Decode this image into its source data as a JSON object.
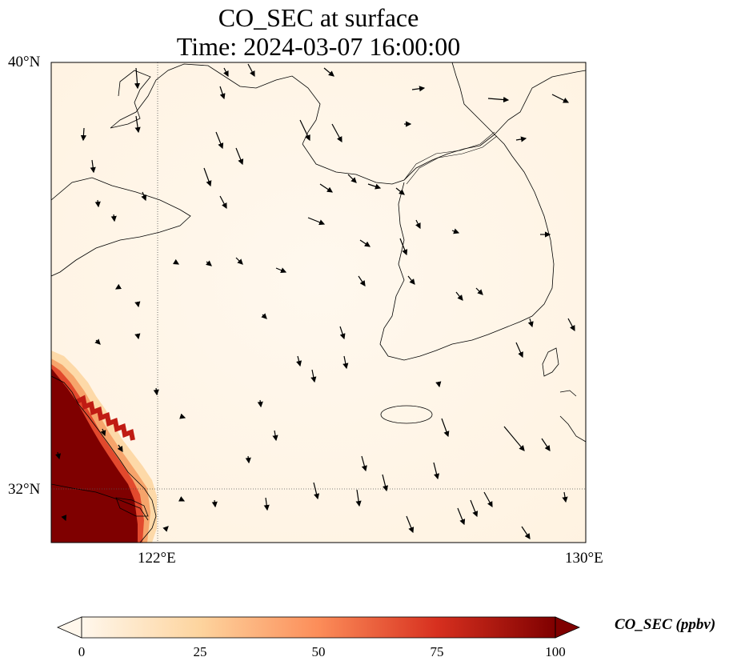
{
  "title": {
    "line1": "CO_SEC at surface",
    "line2": "Time: 2024-03-07 16:00:00"
  },
  "axes": {
    "lat_ticks": [
      "40°N",
      "32°N"
    ],
    "lon_ticks": [
      "122°E",
      "130°E"
    ],
    "lon_range": [
      120,
      130
    ],
    "lat_range": [
      31,
      40
    ],
    "gridlines": "dotted at 122°E and 32°N"
  },
  "colorbar": {
    "label": "CO_SEC (ppbv)",
    "ticks": [
      "0",
      "25",
      "50",
      "75",
      "100"
    ],
    "range": [
      0,
      100
    ],
    "extend": "both",
    "colormap": "OrRd",
    "colors": [
      "#fff7ec",
      "#fdd49e",
      "#fc8d59",
      "#d7301f",
      "#7f0000"
    ]
  },
  "field_summary": {
    "background_value": "near 0 ppbv (pale cream)",
    "high_region": "southwest corner near Shanghai coast, saturated >100 ppbv"
  },
  "wind_vectors": "black quiver arrows, generally southward/south-southeast flow"
}
